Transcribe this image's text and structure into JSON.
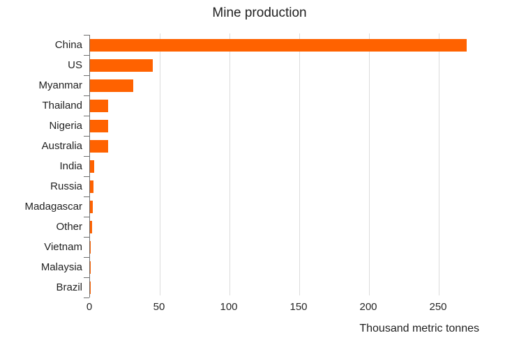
{
  "chart_data": {
    "type": "bar",
    "orientation": "horizontal",
    "title": "Mine production",
    "xlabel": "Thousand metric tonnes",
    "ylabel": "",
    "categories": [
      "China",
      "US",
      "Myanmar",
      "Thailand",
      "Nigeria",
      "Australia",
      "India",
      "Russia",
      "Madagascar",
      "Other",
      "Vietnam",
      "Malaysia",
      "Brazil"
    ],
    "values": [
      270,
      45,
      31,
      13,
      13,
      13,
      2.9,
      2.5,
      2,
      1.5,
      0.6,
      0.6,
      0.5
    ],
    "xlim": [
      0,
      308
    ],
    "xticks": [
      0,
      50,
      100,
      150,
      200,
      250
    ],
    "grid": "vertical-gridlines-only",
    "legend": "none",
    "colors": {
      "bar": "#ff6200",
      "axis": "#6e6e6e",
      "gridline": "#dbdbdb",
      "text": "#1f1f1f"
    }
  }
}
